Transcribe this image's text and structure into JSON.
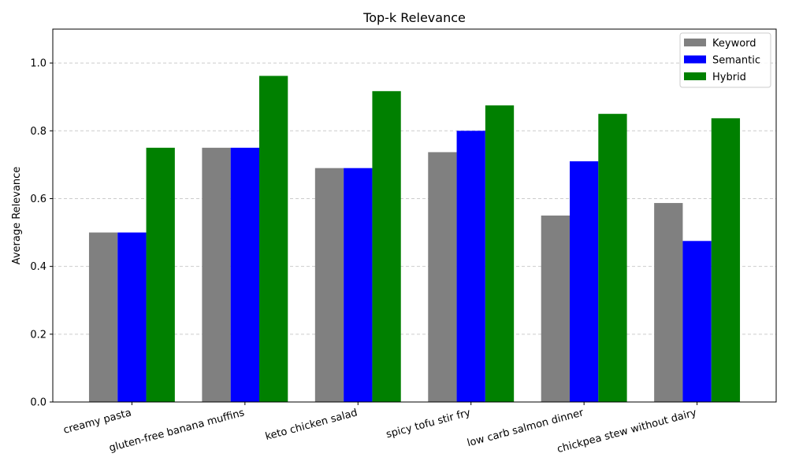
{
  "chart_data": {
    "type": "bar",
    "title": "Top-k Relevance",
    "xlabel": "",
    "ylabel": "Average Relevance",
    "ylim": [
      0,
      1.1
    ],
    "yticks": [
      "0.0",
      "0.2",
      "0.4",
      "0.6",
      "0.8",
      "1.0"
    ],
    "grid": "y-dashed",
    "legend_position": "top-right",
    "categories": [
      "creamy pasta",
      "gluten-free banana muffins",
      "keto chicken salad",
      "spicy tofu stir fry",
      "low carb salmon dinner",
      "chickpea stew without dairy"
    ],
    "series": [
      {
        "name": "Keyword",
        "color": "#808080",
        "values": [
          0.5,
          0.75,
          0.69,
          0.737,
          0.55,
          0.587
        ]
      },
      {
        "name": "Semantic",
        "color": "#0000ff",
        "values": [
          0.5,
          0.75,
          0.69,
          0.8,
          0.71,
          0.475
        ]
      },
      {
        "name": "Hybrid",
        "color": "#008000",
        "values": [
          0.75,
          0.962,
          0.917,
          0.875,
          0.85,
          0.837
        ]
      }
    ]
  }
}
